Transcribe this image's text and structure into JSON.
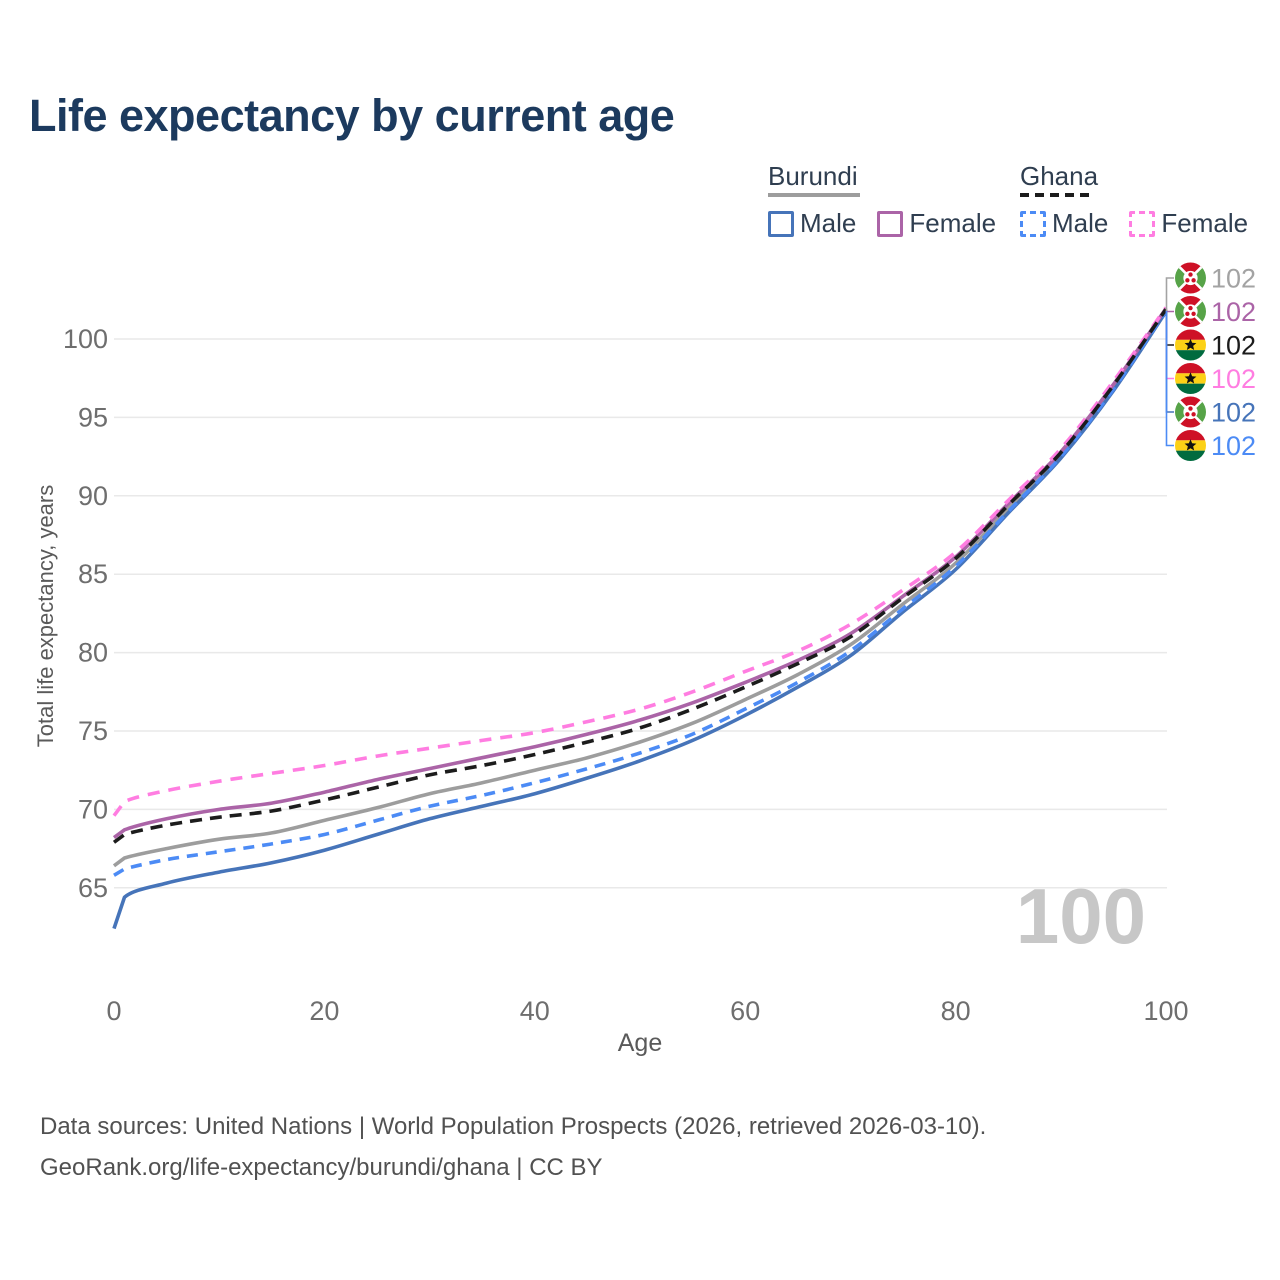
{
  "header": {
    "title": "Life expectancy by current age"
  },
  "legend": {
    "groups": [
      {
        "country": "Burundi",
        "line_style": "solid",
        "underline_color": "#9d9d9d",
        "items": [
          {
            "label": "Male",
            "color": "#4674b9",
            "dashed": false
          },
          {
            "label": "Female",
            "color": "#ab64a7",
            "dashed": false
          }
        ]
      },
      {
        "country": "Ghana",
        "line_style": "dashed",
        "underline_color": "#1c1c1c",
        "items": [
          {
            "label": "Male",
            "color": "#4c8bf5",
            "dashed": true
          },
          {
            "label": "Female",
            "color": "#ff7de1",
            "dashed": true
          }
        ]
      }
    ]
  },
  "chart_data": {
    "type": "line",
    "title": "Life expectancy by current age",
    "xlabel": "Age",
    "ylabel": "Total life expectancy, years",
    "xlim": [
      0,
      100
    ],
    "ylim": [
      61,
      103.5
    ],
    "x_ticks": [
      0,
      20,
      40,
      60,
      80,
      100
    ],
    "y_ticks": [
      65,
      70,
      75,
      80,
      85,
      90,
      95,
      100
    ],
    "grid": "horizontal",
    "legend_position": "top-right",
    "watermark": "100",
    "x": [
      0,
      1,
      5,
      10,
      15,
      20,
      25,
      30,
      35,
      40,
      45,
      50,
      55,
      60,
      65,
      70,
      75,
      80,
      85,
      90,
      95,
      100
    ],
    "series": [
      {
        "id": "burundi-all",
        "country": "Burundi",
        "group": "All",
        "color": "#9d9d9d",
        "dash": null,
        "values": [
          66.4,
          66.9,
          67.5,
          68.1,
          68.5,
          69.3,
          70.1,
          71.0,
          71.7,
          72.5,
          73.3,
          74.3,
          75.5,
          77.0,
          78.6,
          80.5,
          83.1,
          85.7,
          89.2,
          92.6,
          96.9,
          101.85
        ]
      },
      {
        "id": "burundi-male",
        "country": "Burundi",
        "group": "Male",
        "color": "#4674b9",
        "dash": null,
        "values": [
          62.4,
          64.4,
          65.3,
          66.0,
          66.6,
          67.4,
          68.4,
          69.4,
          70.2,
          71.0,
          72.0,
          73.1,
          74.4,
          76.0,
          77.8,
          79.8,
          82.6,
          85.3,
          88.9,
          92.4,
          96.7,
          101.75
        ]
      },
      {
        "id": "ghana-male",
        "country": "Ghana",
        "group": "Male",
        "color": "#4c8bf5",
        "dash": "11 8",
        "values": [
          65.8,
          66.2,
          66.8,
          67.3,
          67.8,
          68.4,
          69.3,
          70.2,
          70.9,
          71.7,
          72.6,
          73.6,
          74.8,
          76.4,
          78.1,
          80.1,
          82.8,
          85.5,
          89.0,
          92.5,
          96.8,
          101.8
        ]
      },
      {
        "id": "burundi-female",
        "country": "Burundi",
        "group": "Female",
        "color": "#ab64a7",
        "dash": null,
        "values": [
          68.2,
          68.7,
          69.4,
          70.0,
          70.4,
          71.1,
          71.9,
          72.6,
          73.3,
          74.0,
          74.8,
          75.7,
          76.8,
          78.1,
          79.5,
          81.2,
          83.6,
          86.1,
          89.5,
          92.8,
          97.1,
          101.95
        ]
      },
      {
        "id": "ghana-female",
        "country": "Ghana",
        "group": "Female",
        "color": "#ff7de1",
        "dash": "12 9",
        "values": [
          69.6,
          70.5,
          71.2,
          71.8,
          72.3,
          72.8,
          73.4,
          73.9,
          74.4,
          74.9,
          75.6,
          76.4,
          77.5,
          78.8,
          80.1,
          81.8,
          84.0,
          86.4,
          89.7,
          93.0,
          97.3,
          102.0
        ]
      },
      {
        "id": "ghana-all",
        "country": "Ghana",
        "group": "All",
        "color": "#1c1c1c",
        "dash": "12 8",
        "values": [
          67.9,
          68.4,
          69.0,
          69.5,
          69.9,
          70.6,
          71.4,
          72.2,
          72.8,
          73.5,
          74.3,
          75.2,
          76.4,
          77.8,
          79.3,
          81.0,
          83.5,
          86.0,
          89.4,
          92.75,
          97.05,
          101.9
        ]
      }
    ],
    "end_labels": [
      {
        "flag": "burundi",
        "color": "#a3a3a3",
        "text": "102"
      },
      {
        "flag": "burundi",
        "color": "#ab64a7",
        "text": "102"
      },
      {
        "flag": "ghana",
        "color": "#1c1c1c",
        "text": "102"
      },
      {
        "flag": "ghana",
        "color": "#ff7de1",
        "text": "102"
      },
      {
        "flag": "burundi",
        "color": "#4674b9",
        "text": "102"
      },
      {
        "flag": "ghana",
        "color": "#4c8bf5",
        "text": "102"
      }
    ]
  },
  "footer": {
    "line1": "Data sources: United Nations | World Population Prospects (2026, retrieved 2026-03-10).",
    "line2": "GeoRank.org/life-expectancy/burundi/ghana | CC BY"
  }
}
